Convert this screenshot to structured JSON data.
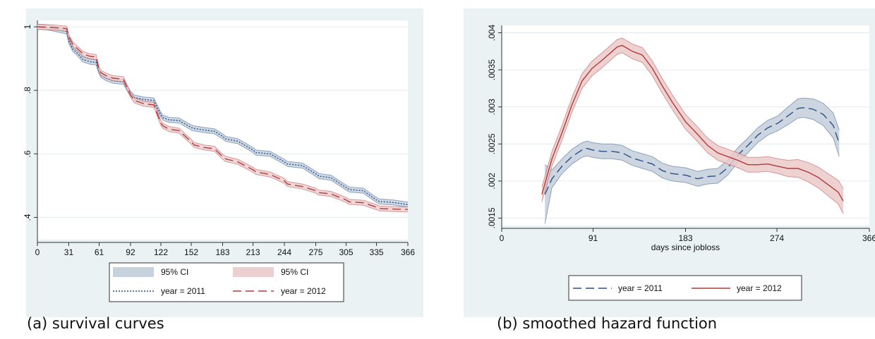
{
  "chart_data": [
    {
      "type": "line",
      "xlim": [
        0,
        366
      ],
      "ylim": [
        0.33,
        1.02
      ],
      "x_ticks": [
        0,
        31,
        61,
        92,
        122,
        152,
        183,
        213,
        244,
        275,
        305,
        335,
        366
      ],
      "y_ticks": [
        {
          "value": 1,
          "label": "1"
        },
        {
          "value": 0.8,
          "label": ".8"
        },
        {
          "value": 0.6,
          "label": ".6"
        },
        {
          "value": 0.4,
          "label": ".4"
        }
      ],
      "grid": "horizontal",
      "legend": {
        "placement": "bottom",
        "items": [
          {
            "label": "95% CI",
            "kind": "band",
            "series": 0
          },
          {
            "label": "95% CI",
            "kind": "band",
            "series": 1
          },
          {
            "label": "year = 2011",
            "kind": "line",
            "series": 0
          },
          {
            "label": "year = 2012",
            "kind": "line",
            "series": 1
          }
        ]
      },
      "series": [
        {
          "name": "year = 2011",
          "color": "#2b4f86",
          "band_color": "#c7d2df",
          "dash": "2,2",
          "x": [
            0,
            8,
            15,
            22,
            29,
            31,
            35,
            40,
            45,
            52,
            58,
            61,
            63,
            68,
            75,
            85,
            92,
            96,
            105,
            115,
            122,
            124,
            130,
            140,
            152,
            155,
            165,
            175,
            183,
            186,
            198,
            213,
            216,
            230,
            244,
            247,
            262,
            275,
            278,
            290,
            305,
            308,
            322,
            335,
            338,
            352,
            366
          ],
          "y": [
            1.0,
            0.999,
            0.995,
            0.99,
            0.985,
            0.955,
            0.93,
            0.915,
            0.897,
            0.89,
            0.888,
            0.858,
            0.848,
            0.838,
            0.83,
            0.827,
            0.789,
            0.777,
            0.771,
            0.768,
            0.723,
            0.714,
            0.707,
            0.705,
            0.683,
            0.68,
            0.675,
            0.671,
            0.655,
            0.647,
            0.64,
            0.612,
            0.604,
            0.6,
            0.575,
            0.568,
            0.563,
            0.537,
            0.53,
            0.525,
            0.494,
            0.488,
            0.484,
            0.455,
            0.45,
            0.447,
            0.44
          ],
          "ci_halfwidth": 0.008
        },
        {
          "name": "year = 2012",
          "color": "#b23a3a",
          "band_color": "#ecd0d1",
          "dash": "12,6",
          "x": [
            0,
            8,
            15,
            22,
            29,
            31,
            35,
            40,
            45,
            52,
            58,
            61,
            63,
            68,
            75,
            85,
            92,
            96,
            105,
            115,
            122,
            124,
            130,
            140,
            152,
            155,
            165,
            175,
            183,
            186,
            198,
            213,
            216,
            230,
            244,
            247,
            262,
            275,
            278,
            290,
            305,
            308,
            322,
            335,
            338,
            352,
            366
          ],
          "y": [
            1.0,
            0.999,
            0.998,
            0.996,
            0.994,
            0.968,
            0.945,
            0.93,
            0.915,
            0.907,
            0.905,
            0.865,
            0.855,
            0.846,
            0.838,
            0.835,
            0.785,
            0.768,
            0.758,
            0.754,
            0.697,
            0.688,
            0.678,
            0.673,
            0.638,
            0.628,
            0.62,
            0.616,
            0.591,
            0.584,
            0.575,
            0.55,
            0.543,
            0.535,
            0.515,
            0.505,
            0.497,
            0.484,
            0.478,
            0.474,
            0.455,
            0.449,
            0.446,
            0.432,
            0.428,
            0.426,
            0.425
          ],
          "ci_halfwidth": 0.008
        }
      ]
    },
    {
      "type": "line",
      "xlabel": "days since jobloss",
      "xlim": [
        0,
        366
      ],
      "ylim": [
        0.0014,
        0.0041
      ],
      "x_ticks": [
        0,
        91,
        183,
        274,
        366
      ],
      "y_ticks": [
        {
          "value": 0.0015,
          "label": ".0015"
        },
        {
          "value": 0.002,
          "label": ".002"
        },
        {
          "value": 0.0025,
          "label": ".0025"
        },
        {
          "value": 0.003,
          "label": ".003"
        },
        {
          "value": 0.0035,
          "label": ".0035"
        },
        {
          "value": 0.004,
          "label": ".004"
        }
      ],
      "grid": "horizontal",
      "legend": {
        "placement": "bottom",
        "items": [
          {
            "label": "year = 2011",
            "kind": "line",
            "series": 0
          },
          {
            "label": "year = 2012",
            "kind": "line",
            "series": 1
          }
        ]
      },
      "series": [
        {
          "name": "year = 2011",
          "color": "#2b4f86",
          "band_color": "#c3ceda",
          "dash": "12,6",
          "x": [
            43,
            50,
            60,
            70,
            80,
            85,
            90,
            100,
            110,
            120,
            130,
            140,
            150,
            160,
            170,
            183,
            195,
            205,
            215,
            225,
            235,
            245,
            255,
            265,
            275,
            285,
            295,
            300,
            310,
            320,
            330,
            336
          ],
          "y": [
            0.00182,
            0.00203,
            0.0022,
            0.00233,
            0.00242,
            0.00244,
            0.00242,
            0.0024,
            0.0024,
            0.00238,
            0.00231,
            0.00227,
            0.00223,
            0.00214,
            0.0021,
            0.00208,
            0.00203,
            0.00206,
            0.00207,
            0.00218,
            0.00235,
            0.00248,
            0.00262,
            0.00272,
            0.00278,
            0.00288,
            0.00298,
            0.00299,
            0.00297,
            0.0029,
            0.00275,
            0.00251
          ],
          "ci_halfwidth": [
            0.0004,
            0.00012,
            0.0001,
            0.0001,
            0.0001,
            0.0001,
            0.0001,
            0.0001,
            0.0001,
            0.0001,
            0.0001,
            0.0001,
            0.0001,
            0.0001,
            0.0001,
            0.0001,
            0.0001,
            0.0001,
            0.0001,
            0.0001,
            0.0001,
            0.0001,
            0.0001,
            0.0001,
            0.0001,
            0.00012,
            0.00013,
            0.00013,
            0.00014,
            0.00015,
            0.00017,
            0.00018
          ]
        },
        {
          "name": "year = 2012",
          "color": "#b23a3a",
          "band_color": "#ebc9c9",
          "dash": "",
          "x": [
            40,
            50,
            60,
            70,
            80,
            90,
            100,
            110,
            115,
            120,
            130,
            140,
            150,
            160,
            170,
            183,
            195,
            205,
            215,
            225,
            235,
            245,
            255,
            265,
            275,
            285,
            295,
            305,
            315,
            325,
            335,
            340
          ],
          "y": [
            0.00182,
            0.0023,
            0.00265,
            0.00303,
            0.00335,
            0.00352,
            0.00363,
            0.00375,
            0.00381,
            0.00383,
            0.00375,
            0.0037,
            0.00352,
            0.00328,
            0.00306,
            0.0028,
            0.00263,
            0.00248,
            0.00238,
            0.00233,
            0.00228,
            0.00222,
            0.00222,
            0.00223,
            0.0022,
            0.00217,
            0.00217,
            0.00212,
            0.00205,
            0.00195,
            0.00185,
            0.00173
          ],
          "ci_halfwidth": [
            0.0001,
            0.0001,
            0.0001,
            0.0001,
            0.0001,
            0.0001,
            0.0001,
            0.0001,
            0.0001,
            0.0001,
            0.0001,
            0.0001,
            0.0001,
            0.0001,
            0.0001,
            0.0001,
            0.0001,
            0.0001,
            0.0001,
            0.0001,
            0.0001,
            0.0001,
            0.0001,
            0.0001,
            0.0001,
            0.00011,
            0.00012,
            0.00013,
            0.00014,
            0.00015,
            0.00016,
            0.00017
          ]
        }
      ]
    }
  ],
  "captions": {
    "a": "(a)  survival curves",
    "b": "(b)  smoothed hazard function"
  }
}
